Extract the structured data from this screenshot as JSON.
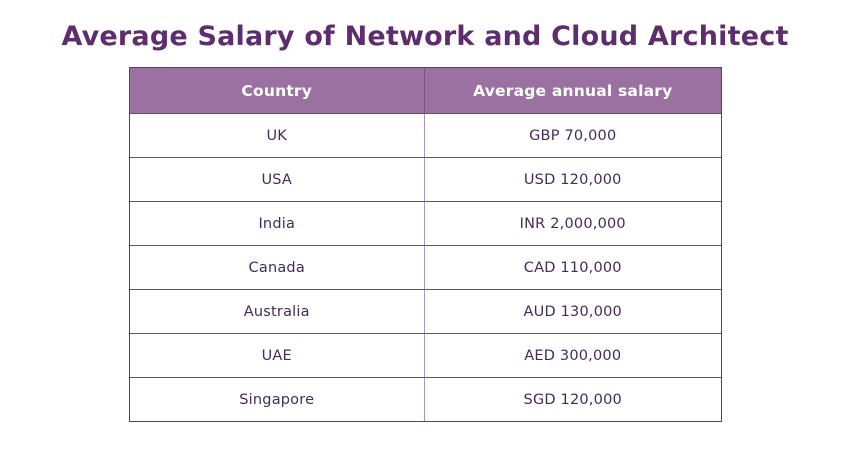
{
  "page_title": "Average Salary of Network and Cloud Architect",
  "colors": {
    "background": "#ffffff",
    "title_text": "#5e2d6e",
    "header_background": "#9b71a1",
    "header_text": "#ffffff",
    "body_text": "#452a5c",
    "border_dark": "#6e4878",
    "divider_light": "#b191bc"
  },
  "chart_data": {
    "type": "table",
    "title": "Average Salary of Network and Cloud Architect",
    "columns": [
      "Country",
      "Average annual salary"
    ],
    "rows": [
      [
        "UK",
        "GBP 70,000"
      ],
      [
        "USA",
        "USD 120,000"
      ],
      [
        "India",
        "INR 2,000,000"
      ],
      [
        "Canada",
        "CAD 110,000"
      ],
      [
        "Australia",
        "AUD 130,000"
      ],
      [
        "UAE",
        "AED 300,000"
      ],
      [
        "Singapore",
        "SGD 120,000"
      ]
    ]
  }
}
